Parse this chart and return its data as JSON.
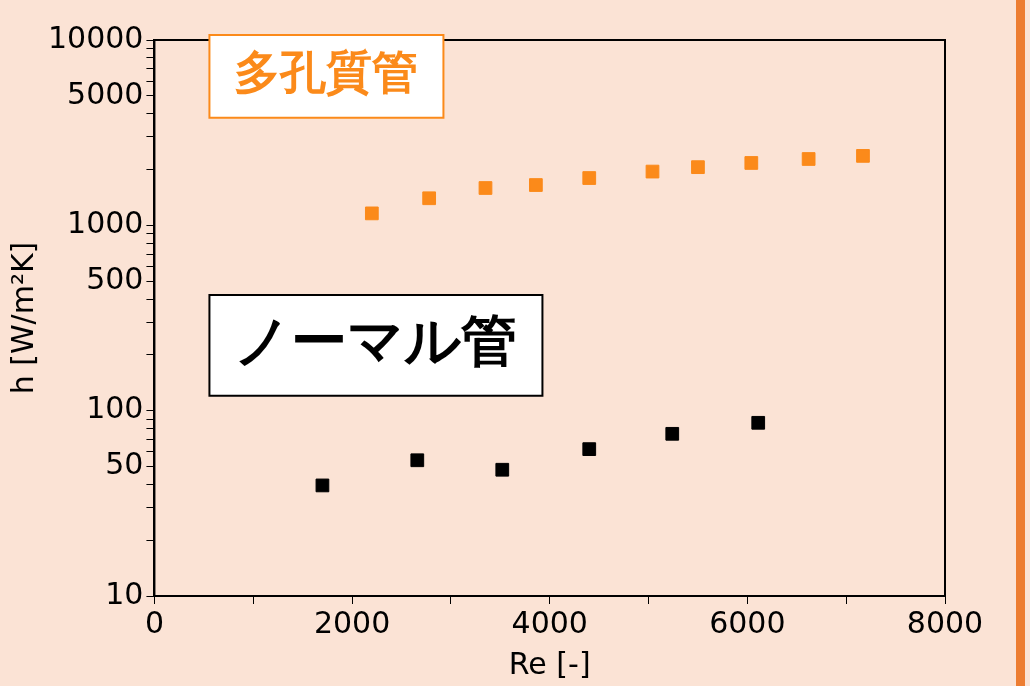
{
  "chart_data": {
    "type": "scatter",
    "xlabel": "Re [-]",
    "ylabel": "h [W/m²K]",
    "log": "y",
    "grid": false,
    "legend": false,
    "marker": "square",
    "xlim": [
      0,
      8000
    ],
    "xticks": [
      0,
      {
        "value": 1000,
        "label": null
      },
      2000,
      {
        "value": 3000,
        "label": null
      },
      4000,
      {
        "value": 5000,
        "label": null
      },
      6000,
      {
        "value": 7000,
        "label": null
      },
      8000
    ],
    "ylim": [
      10,
      10000
    ],
    "yticks": [
      10,
      {
        "value": 20,
        "label": null
      },
      {
        "value": 30,
        "label": null
      },
      {
        "value": 40,
        "label": null
      },
      50,
      {
        "value": 60,
        "label": null
      },
      {
        "value": 70,
        "label": null
      },
      {
        "value": 80,
        "label": null
      },
      {
        "value": 90,
        "label": null
      },
      100,
      {
        "value": 200,
        "label": null
      },
      {
        "value": 300,
        "label": null
      },
      {
        "value": 400,
        "label": null
      },
      500,
      {
        "value": 600,
        "label": null
      },
      {
        "value": 700,
        "label": null
      },
      {
        "value": 800,
        "label": null
      },
      {
        "value": 900,
        "label": null
      },
      1000,
      {
        "value": 2000,
        "label": null
      },
      {
        "value": 3000,
        "label": null
      },
      {
        "value": 4000,
        "label": null
      },
      5000,
      {
        "value": 6000,
        "label": null
      },
      {
        "value": 7000,
        "label": null
      },
      {
        "value": 8000,
        "label": null
      },
      {
        "value": 9000,
        "label": null
      },
      10000
    ],
    "series": [
      {
        "name": "多孔質管",
        "color": "#fb8a1a",
        "x": [
          2200,
          2780,
          3350,
          3860,
          4400,
          5040,
          5500,
          6040,
          6620,
          7170
        ],
        "values": [
          1160,
          1400,
          1590,
          1650,
          1800,
          1950,
          2060,
          2170,
          2280,
          2370
        ]
      },
      {
        "name": "ノーマル管",
        "color": "#000000",
        "x": [
          1700,
          2660,
          3520,
          4400,
          5240,
          6110
        ],
        "values": [
          39.5,
          54,
          48,
          62,
          75,
          86
        ]
      }
    ]
  }
}
